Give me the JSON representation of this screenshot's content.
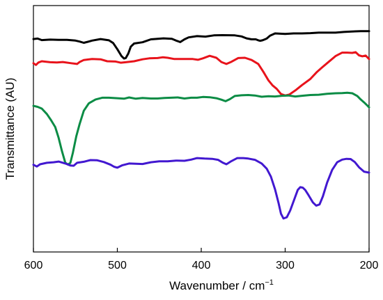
{
  "chart_data": {
    "type": "line",
    "title": "",
    "xlabel": "Wavenumber / cm",
    "xlabel_superscript": "−1",
    "ylabel": "Transmittance (AU)",
    "x_reversed": true,
    "xlim": [
      600,
      200
    ],
    "ylim": [
      0,
      100
    ],
    "x_ticks": [
      600,
      500,
      400,
      300,
      200
    ],
    "y_ticks": [],
    "grid": false,
    "legend": "none",
    "series": [
      {
        "color": "#000000",
        "points": [
          [
            600,
            86.4
          ],
          [
            595,
            86.6
          ],
          [
            590,
            86.0
          ],
          [
            580,
            86.2
          ],
          [
            570,
            86.1
          ],
          [
            560,
            86.1
          ],
          [
            550,
            85.8
          ],
          [
            545,
            85.4
          ],
          [
            540,
            84.9
          ],
          [
            535,
            85.3
          ],
          [
            530,
            85.8
          ],
          [
            520,
            86.4
          ],
          [
            510,
            85.9
          ],
          [
            505,
            84.8
          ],
          [
            500,
            82.3
          ],
          [
            495,
            79.5
          ],
          [
            492,
            78.5
          ],
          [
            490,
            78.7
          ],
          [
            487,
            80.5
          ],
          [
            484,
            83.3
          ],
          [
            480,
            84.6
          ],
          [
            470,
            85.1
          ],
          [
            460,
            86.3
          ],
          [
            445,
            86.7
          ],
          [
            435,
            86.5
          ],
          [
            430,
            85.8
          ],
          [
            425,
            85.2
          ],
          [
            420,
            86.3
          ],
          [
            415,
            87.1
          ],
          [
            405,
            87.6
          ],
          [
            395,
            87.4
          ],
          [
            385,
            87.9
          ],
          [
            375,
            88.0
          ],
          [
            360,
            87.9
          ],
          [
            352,
            87.5
          ],
          [
            346,
            86.7
          ],
          [
            340,
            86.3
          ],
          [
            335,
            86.3
          ],
          [
            332,
            85.9
          ],
          [
            330,
            85.7
          ],
          [
            327,
            85.9
          ],
          [
            322,
            86.6
          ],
          [
            318,
            87.8
          ],
          [
            312,
            88.7
          ],
          [
            300,
            88.5
          ],
          [
            290,
            88.7
          ],
          [
            280,
            88.7
          ],
          [
            270,
            88.8
          ],
          [
            260,
            89.0
          ],
          [
            250,
            89.0
          ],
          [
            240,
            89.0
          ],
          [
            230,
            89.3
          ],
          [
            220,
            89.5
          ],
          [
            210,
            89.6
          ],
          [
            200,
            89.6
          ]
        ]
      },
      {
        "color": "#e8131b",
        "points": [
          [
            600,
            76.6
          ],
          [
            597,
            75.9
          ],
          [
            594,
            76.9
          ],
          [
            590,
            77.4
          ],
          [
            580,
            77.0
          ],
          [
            572,
            76.9
          ],
          [
            565,
            77.1
          ],
          [
            555,
            76.6
          ],
          [
            548,
            76.3
          ],
          [
            545,
            77.1
          ],
          [
            540,
            77.9
          ],
          [
            530,
            78.3
          ],
          [
            520,
            78.2
          ],
          [
            512,
            77.4
          ],
          [
            502,
            77.3
          ],
          [
            496,
            76.8
          ],
          [
            490,
            77.0
          ],
          [
            480,
            77.4
          ],
          [
            470,
            78.2
          ],
          [
            462,
            78.6
          ],
          [
            452,
            78.7
          ],
          [
            446,
            79.0
          ],
          [
            440,
            78.8
          ],
          [
            432,
            78.3
          ],
          [
            424,
            78.3
          ],
          [
            417,
            78.3
          ],
          [
            410,
            78.3
          ],
          [
            404,
            78.0
          ],
          [
            398,
            78.6
          ],
          [
            390,
            79.6
          ],
          [
            382,
            78.8
          ],
          [
            376,
            77.1
          ],
          [
            370,
            76.3
          ],
          [
            364,
            77.2
          ],
          [
            356,
            78.7
          ],
          [
            348,
            78.8
          ],
          [
            340,
            77.9
          ],
          [
            332,
            76.3
          ],
          [
            326,
            73.1
          ],
          [
            320,
            69.7
          ],
          [
            315,
            67.6
          ],
          [
            310,
            66.2
          ],
          [
            305,
            64.1
          ],
          [
            300,
            63.5
          ],
          [
            295,
            63.9
          ],
          [
            287,
            65.8
          ],
          [
            280,
            67.7
          ],
          [
            270,
            70.2
          ],
          [
            262,
            73.1
          ],
          [
            256,
            74.9
          ],
          [
            248,
            77.2
          ],
          [
            240,
            79.5
          ],
          [
            232,
            80.9
          ],
          [
            226,
            80.9
          ],
          [
            220,
            80.8
          ],
          [
            216,
            81.1
          ],
          [
            212,
            79.8
          ],
          [
            208,
            79.4
          ],
          [
            204,
            79.7
          ],
          [
            200,
            78.3
          ]
        ]
      },
      {
        "color": "#0b8c45",
        "points": [
          [
            600,
            59.3
          ],
          [
            595,
            58.9
          ],
          [
            590,
            58.2
          ],
          [
            584,
            56.0
          ],
          [
            579,
            53.5
          ],
          [
            574,
            50.7
          ],
          [
            570,
            46.3
          ],
          [
            566,
            40.9
          ],
          [
            562,
            36.2
          ],
          [
            559,
            35.5
          ],
          [
            556,
            36.1
          ],
          [
            553,
            40.2
          ],
          [
            549,
            46.9
          ],
          [
            545,
            51.9
          ],
          [
            540,
            57.3
          ],
          [
            534,
            60.3
          ],
          [
            526,
            61.9
          ],
          [
            518,
            62.6
          ],
          [
            510,
            62.6
          ],
          [
            500,
            62.4
          ],
          [
            492,
            62.2
          ],
          [
            486,
            62.7
          ],
          [
            478,
            62.2
          ],
          [
            470,
            62.5
          ],
          [
            460,
            62.3
          ],
          [
            452,
            62.3
          ],
          [
            444,
            62.5
          ],
          [
            436,
            62.6
          ],
          [
            428,
            62.7
          ],
          [
            420,
            62.3
          ],
          [
            412,
            62.6
          ],
          [
            405,
            62.6
          ],
          [
            398,
            62.9
          ],
          [
            390,
            62.8
          ],
          [
            382,
            62.4
          ],
          [
            376,
            61.8
          ],
          [
            371,
            61.2
          ],
          [
            366,
            62.0
          ],
          [
            360,
            63.3
          ],
          [
            352,
            63.6
          ],
          [
            344,
            63.7
          ],
          [
            336,
            63.5
          ],
          [
            328,
            63.0
          ],
          [
            320,
            63.2
          ],
          [
            312,
            63.1
          ],
          [
            304,
            63.4
          ],
          [
            296,
            63.5
          ],
          [
            288,
            63.1
          ],
          [
            280,
            63.4
          ],
          [
            270,
            63.7
          ],
          [
            260,
            63.8
          ],
          [
            250,
            64.2
          ],
          [
            240,
            64.4
          ],
          [
            232,
            64.5
          ],
          [
            226,
            64.6
          ],
          [
            220,
            64.4
          ],
          [
            214,
            63.3
          ],
          [
            210,
            61.9
          ],
          [
            206,
            60.7
          ],
          [
            202,
            59.4
          ],
          [
            200,
            58.7
          ]
        ]
      },
      {
        "color": "#4218d0",
        "points": [
          [
            600,
            35.4
          ],
          [
            596,
            34.7
          ],
          [
            592,
            35.6
          ],
          [
            584,
            36.2
          ],
          [
            576,
            36.4
          ],
          [
            570,
            36.7
          ],
          [
            562,
            35.9
          ],
          [
            556,
            35.1
          ],
          [
            552,
            35.0
          ],
          [
            548,
            36.2
          ],
          [
            540,
            36.6
          ],
          [
            532,
            37.3
          ],
          [
            524,
            37.2
          ],
          [
            516,
            36.5
          ],
          [
            508,
            35.4
          ],
          [
            504,
            34.6
          ],
          [
            500,
            34.2
          ],
          [
            494,
            35.2
          ],
          [
            486,
            35.9
          ],
          [
            478,
            35.8
          ],
          [
            470,
            35.7
          ],
          [
            460,
            36.4
          ],
          [
            450,
            36.8
          ],
          [
            440,
            36.8
          ],
          [
            430,
            37.1
          ],
          [
            420,
            37.0
          ],
          [
            412,
            37.5
          ],
          [
            405,
            38.1
          ],
          [
            396,
            37.9
          ],
          [
            387,
            37.8
          ],
          [
            380,
            37.4
          ],
          [
            374,
            36.2
          ],
          [
            370,
            35.6
          ],
          [
            364,
            36.9
          ],
          [
            357,
            38.1
          ],
          [
            350,
            38.1
          ],
          [
            344,
            37.9
          ],
          [
            336,
            37.4
          ],
          [
            328,
            35.9
          ],
          [
            322,
            33.8
          ],
          [
            317,
            30.6
          ],
          [
            312,
            25.4
          ],
          [
            308,
            20.0
          ],
          [
            305,
            15.5
          ],
          [
            302,
            13.6
          ],
          [
            298,
            14.1
          ],
          [
            294,
            16.8
          ],
          [
            289,
            21.5
          ],
          [
            285,
            25.2
          ],
          [
            282,
            26.3
          ],
          [
            279,
            26.1
          ],
          [
            276,
            25.1
          ],
          [
            272,
            23.0
          ],
          [
            267,
            20.1
          ],
          [
            263,
            18.8
          ],
          [
            259,
            19.3
          ],
          [
            255,
            22.6
          ],
          [
            250,
            28.2
          ],
          [
            244,
            33.3
          ],
          [
            238,
            36.4
          ],
          [
            232,
            37.5
          ],
          [
            227,
            37.8
          ],
          [
            222,
            37.7
          ],
          [
            217,
            36.5
          ],
          [
            212,
            34.4
          ],
          [
            206,
            32.6
          ],
          [
            200,
            32.2
          ]
        ]
      }
    ]
  }
}
